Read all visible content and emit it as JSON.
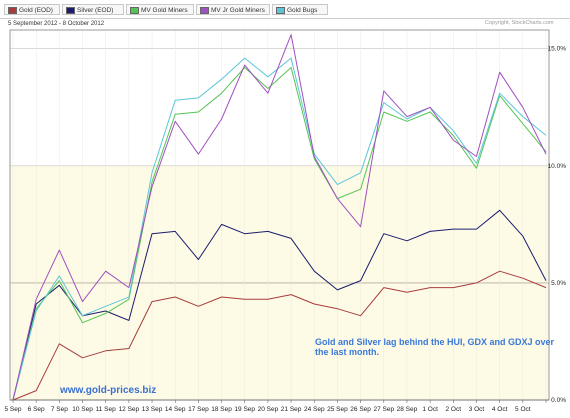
{
  "legend": [
    {
      "name": "Gold (EOD)",
      "color": "#a83c3c",
      "left": 4
    },
    {
      "name": "Silver (EOD)",
      "color": "#1c1c6e",
      "left": 62
    },
    {
      "name": "MV Gold Miners",
      "color": "#55c455",
      "left": 126
    },
    {
      "name": "MV Jr Gold Miners",
      "color": "#a050c0",
      "left": 196
    },
    {
      "name": "Gold Bugs",
      "color": "#5cc6d8",
      "left": 272
    }
  ],
  "header": {
    "date_range": "5 September 2012 - 8 October 2012",
    "copyright": "Copyright, StockCharts.com"
  },
  "annotation": {
    "line1": "Gold and Silver lag behind the HUI, GDX and GDXJ over",
    "line2": "the last month."
  },
  "website": "www.gold-prices.biz",
  "chart_data": {
    "type": "line",
    "categories": [
      "5 Sep",
      "6 Sep",
      "7 Sep",
      "10 Sep",
      "11 Sep",
      "12 Sep",
      "13 Sep",
      "14 Sep",
      "17 Sep",
      "18 Sep",
      "19 Sep",
      "20 Sep",
      "21 Sep",
      "24 Sep",
      "25 Sep",
      "26 Sep",
      "27 Sep",
      "28 Sep",
      "1 Oct",
      "2 Oct",
      "3 Oct",
      "4 Oct",
      "5 Oct",
      "8 Oct"
    ],
    "tick_labels": [
      "5 Sep",
      "6 Sep",
      "7 Sep",
      "10 Sep",
      "11 Sep",
      "12 Sep",
      "13 Sep",
      "14 Sep",
      "17 Sep",
      "18 Sep",
      "19 Sep",
      "20 Sep",
      "21 Sep",
      "24 Sep",
      "25 Sep",
      "26 Sep",
      "27 Sep",
      "28 Sep",
      "1 Oct",
      "2 Oct",
      "3 Oct",
      "4 Oct",
      "5 Oct",
      ""
    ],
    "y_ticks": [
      0,
      5,
      10,
      15
    ],
    "y_tick_labels": [
      "0.0%",
      "5.0%",
      "10.0%",
      "15.0%"
    ],
    "ylim": [
      0,
      15.8
    ],
    "y_unit": "%",
    "series": [
      {
        "name": "Gold (EOD)",
        "color": "#a83c3c",
        "values": [
          0.0,
          0.4,
          2.4,
          1.8,
          2.1,
          2.2,
          4.2,
          4.4,
          4.0,
          4.4,
          4.3,
          4.3,
          4.5,
          4.1,
          3.9,
          3.6,
          4.8,
          4.6,
          4.8,
          4.8,
          5.0,
          5.5,
          5.2,
          4.8
        ]
      },
      {
        "name": "Silver (EOD)",
        "color": "#1c1c6e",
        "values": [
          0.0,
          4.1,
          4.9,
          3.6,
          3.8,
          3.4,
          7.1,
          7.2,
          6.0,
          7.5,
          7.1,
          7.2,
          6.9,
          5.5,
          4.7,
          5.1,
          7.1,
          6.8,
          7.2,
          7.3,
          7.3,
          8.1,
          7.0,
          5.1
        ]
      },
      {
        "name": "MV Gold Miners",
        "color": "#55c455",
        "values": [
          0.0,
          3.9,
          5.1,
          3.3,
          3.7,
          4.3,
          9.3,
          12.2,
          12.3,
          13.1,
          14.2,
          13.3,
          14.2,
          10.3,
          8.6,
          9.0,
          12.3,
          11.9,
          12.3,
          11.3,
          9.9,
          13.0,
          11.8,
          10.6
        ]
      },
      {
        "name": "MV Jr Gold Miners",
        "color": "#a050c0",
        "values": [
          0.0,
          4.3,
          6.4,
          4.2,
          5.5,
          4.8,
          9.1,
          11.9,
          10.5,
          12.0,
          14.3,
          13.1,
          15.6,
          10.4,
          8.6,
          7.4,
          13.2,
          12.1,
          12.5,
          11.1,
          10.4,
          14.0,
          12.5,
          10.5
        ]
      },
      {
        "name": "Gold Bugs",
        "color": "#5cc6d8",
        "values": [
          0.0,
          3.8,
          5.3,
          3.6,
          4.0,
          4.4,
          9.7,
          12.8,
          12.9,
          13.7,
          14.6,
          13.8,
          14.6,
          10.5,
          9.2,
          9.7,
          12.7,
          12.0,
          12.5,
          11.5,
          10.1,
          13.1,
          12.1,
          11.3
        ]
      }
    ]
  }
}
